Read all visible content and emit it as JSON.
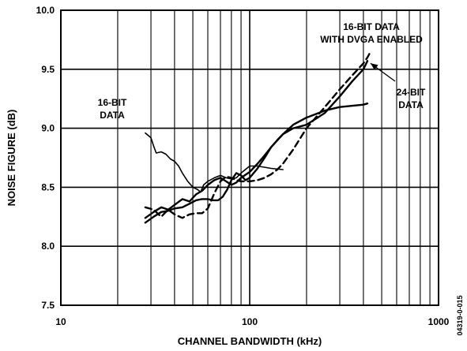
{
  "chart_data": {
    "type": "line",
    "xlabel": "CHANNEL BANDWIDTH (kHz)",
    "ylabel": "NOISE FIGURE (dB)",
    "x_scale": "log",
    "xlim": [
      10,
      1000
    ],
    "ylim": [
      7.5,
      10.0
    ],
    "x_ticks": [
      {
        "value": 10,
        "label": "10"
      },
      {
        "value": 100,
        "label": "100"
      },
      {
        "value": 1000,
        "label": "1000"
      }
    ],
    "y_ticks": [
      {
        "value": 7.5,
        "label": "7.5"
      },
      {
        "value": 8.0,
        "label": "8.0"
      },
      {
        "value": 8.5,
        "label": "8.5"
      },
      {
        "value": 9.0,
        "label": "9.0"
      },
      {
        "value": 9.5,
        "label": "9.5"
      },
      {
        "value": 10.0,
        "label": "10.0"
      }
    ],
    "grid": true,
    "series": [
      {
        "name": "16-BIT DATA",
        "style": "solid-thin",
        "x": [
          28,
          30,
          31,
          32,
          34,
          36,
          38,
          40,
          42,
          44,
          47,
          50,
          53,
          55,
          57,
          60,
          65,
          70,
          75,
          80,
          85,
          90,
          100,
          110,
          130,
          150
        ],
        "y": [
          8.96,
          8.92,
          8.85,
          8.79,
          8.8,
          8.78,
          8.74,
          8.72,
          8.68,
          8.62,
          8.55,
          8.5,
          8.48,
          8.46,
          8.52,
          8.55,
          8.58,
          8.6,
          8.58,
          8.57,
          8.58,
          8.62,
          8.68,
          8.68,
          8.66,
          8.65
        ]
      },
      {
        "name": "24-BIT DATA",
        "style": "solid",
        "x": [
          28,
          31,
          34,
          37,
          40,
          44,
          48,
          52,
          56,
          60,
          64,
          68,
          72,
          76,
          80,
          85,
          90,
          95,
          100,
          110,
          120,
          130,
          150,
          170,
          200,
          250,
          300,
          400,
          420
        ],
        "y": [
          8.2,
          8.25,
          8.29,
          8.3,
          8.32,
          8.33,
          8.36,
          8.39,
          8.4,
          8.4,
          8.39,
          8.39,
          8.42,
          8.48,
          8.56,
          8.62,
          8.6,
          8.56,
          8.58,
          8.66,
          8.75,
          8.84,
          8.95,
          9.03,
          9.09,
          9.15,
          9.18,
          9.2,
          9.21
        ]
      },
      {
        "name": "16-BIT DATA WITH DVGA ENABLED",
        "style": "dashed",
        "x": [
          28,
          31,
          34,
          37,
          40,
          44,
          48,
          52,
          56,
          60,
          65,
          70,
          75,
          80,
          85,
          90,
          100,
          110,
          120,
          130,
          140,
          150,
          170,
          200,
          250,
          300,
          350,
          400,
          420,
          430
        ],
        "y": [
          8.33,
          8.31,
          8.25,
          8.31,
          8.27,
          8.24,
          8.27,
          8.28,
          8.28,
          8.32,
          8.45,
          8.55,
          8.59,
          8.58,
          8.56,
          8.55,
          8.55,
          8.56,
          8.58,
          8.61,
          8.65,
          8.7,
          8.82,
          9.0,
          9.18,
          9.33,
          9.45,
          9.55,
          9.6,
          9.63
        ]
      },
      {
        "name": "",
        "style": "solid",
        "x": [
          28,
          31,
          34,
          37,
          40,
          44,
          48,
          52,
          56,
          60,
          65,
          70,
          75,
          80,
          85,
          90,
          100,
          110,
          120,
          130,
          140,
          150,
          170,
          200,
          250,
          300,
          350,
          400,
          420
        ],
        "y": [
          8.24,
          8.29,
          8.33,
          8.31,
          8.35,
          8.4,
          8.38,
          8.44,
          8.47,
          8.52,
          8.56,
          8.58,
          8.55,
          8.52,
          8.54,
          8.58,
          8.63,
          8.7,
          8.77,
          8.84,
          8.9,
          8.95,
          9.0,
          9.03,
          9.13,
          9.27,
          9.4,
          9.5,
          9.57
        ]
      }
    ],
    "annotations": [
      {
        "lines": [
          "16-BIT",
          "DATA"
        ]
      },
      {
        "lines": [
          "16-BIT DATA",
          "WITH DVGA ENABLED"
        ]
      },
      {
        "lines": [
          "24-BIT",
          "DATA"
        ]
      }
    ]
  },
  "figure_id": "04319-0-015"
}
